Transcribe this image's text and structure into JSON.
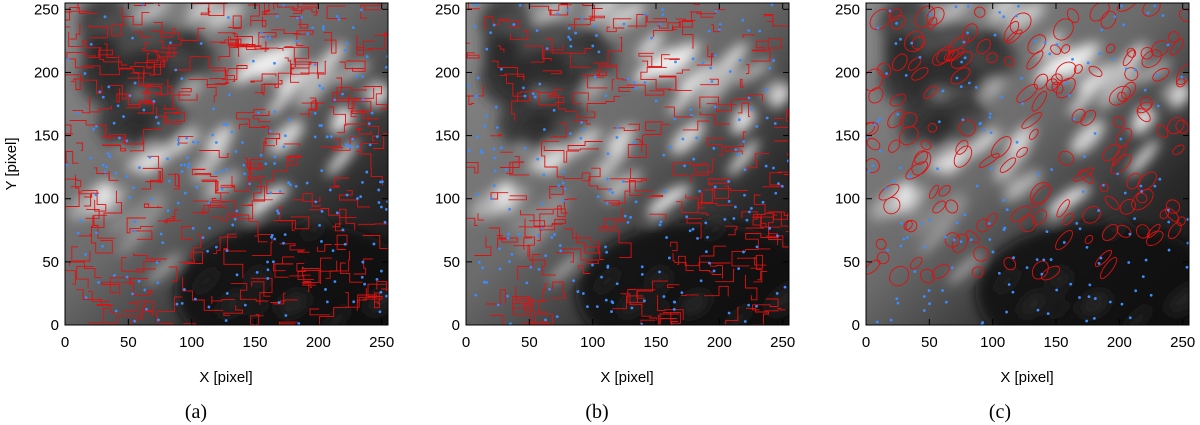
{
  "panels": [
    {
      "id": "a",
      "caption": "(a)",
      "xlabel": "X [pixel]",
      "ylabel": "Y [pixel]",
      "xticks": [
        "0",
        "50",
        "100",
        "150",
        "200",
        "250"
      ],
      "yticks": [
        "0",
        "50",
        "100",
        "150",
        "200",
        "250"
      ],
      "xrange": [
        0,
        255
      ],
      "yrange": [
        0,
        255
      ],
      "show_ylabel": true,
      "segmentation": "dense"
    },
    {
      "id": "b",
      "caption": "(b)",
      "xlabel": "X [pixel]",
      "ylabel": "",
      "xticks": [
        "0",
        "50",
        "100",
        "150",
        "200",
        "250"
      ],
      "yticks": [
        "0",
        "50",
        "100",
        "150",
        "200",
        "250"
      ],
      "xrange": [
        0,
        255
      ],
      "yrange": [
        0,
        255
      ],
      "show_ylabel": false,
      "segmentation": "medium"
    },
    {
      "id": "c",
      "caption": "(c)",
      "xlabel": "X [pixel]",
      "ylabel": "",
      "xticks": [
        "0",
        "50",
        "100",
        "150",
        "200",
        "250"
      ],
      "yticks": [
        "0",
        "50",
        "100",
        "150",
        "200",
        "250"
      ],
      "xrange": [
        0,
        255
      ],
      "yrange": [
        0,
        255
      ],
      "show_ylabel": false,
      "segmentation": "contours"
    }
  ],
  "colors": {
    "contour": "#e01010",
    "marker": "#3a8cff",
    "dark": "#0e0e0e",
    "bright": "#f2f2f2"
  }
}
